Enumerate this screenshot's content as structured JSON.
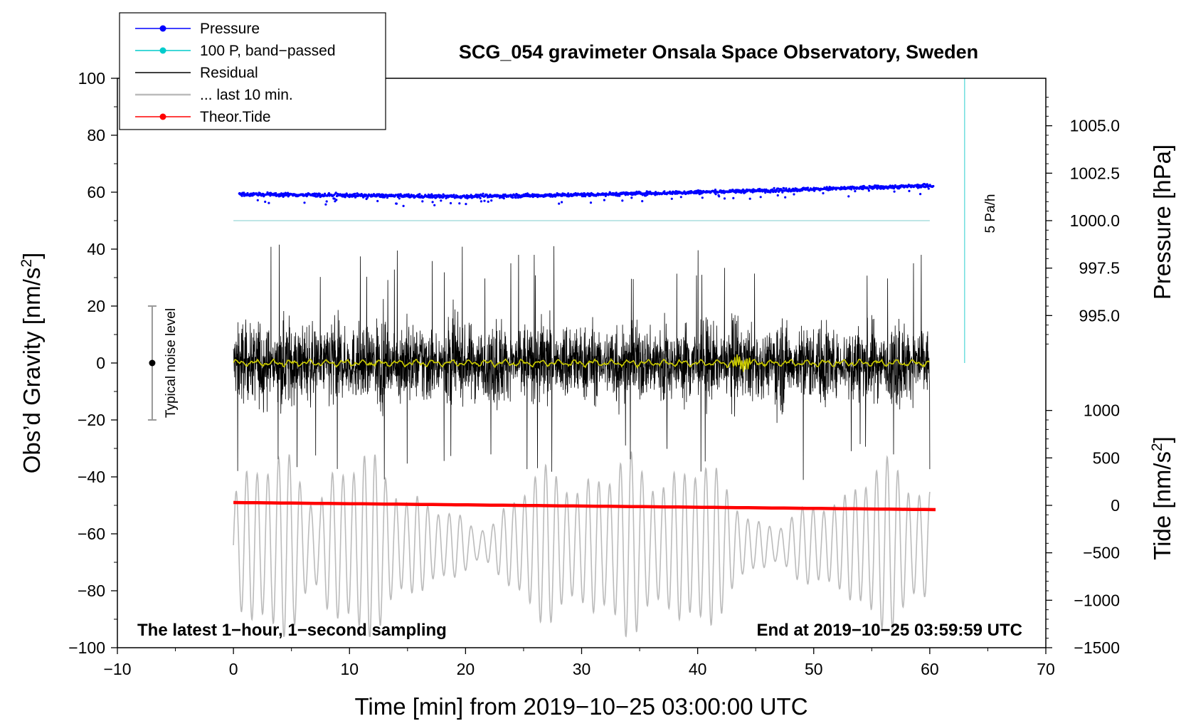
{
  "chart_data": {
    "type": "line",
    "title": "SCG_054 gravimeter Onsala Space Observatory, Sweden",
    "xlabel": "Time [min] from 2019−10−25 03:00:00 UTC",
    "ylabel_main": "Obs’d Gravity [nm/s",
    "ylabel_main_sup": "2",
    "ylabel_main_close": "]",
    "ylabel_pressure": "Pressure [hPa]",
    "ylabel_tide": "Tide [nm/s",
    "ylabel_tide_sup": "2",
    "ylabel_tide_close": "]",
    "xlim": [
      -10,
      70
    ],
    "ylim": [
      -100,
      100
    ],
    "x_ticks": [
      -10,
      0,
      10,
      20,
      30,
      40,
      50,
      60,
      70
    ],
    "x_tick_labels": [
      "−10",
      "0",
      "10",
      "20",
      "30",
      "40",
      "50",
      "60",
      "70"
    ],
    "y_ticks": [
      -100,
      -80,
      -60,
      -40,
      -20,
      0,
      20,
      40,
      60,
      80,
      100
    ],
    "y_tick_labels": [
      "−100",
      "−80",
      "−60",
      "−40",
      "−20",
      "0",
      "20",
      "40",
      "60",
      "80",
      "100"
    ],
    "pressure_axis": {
      "ticks": [
        995.0,
        997.5,
        1000.0,
        1002.5,
        1005.0
      ],
      "labels": [
        "995.0",
        "997.5",
        "1000.0",
        "1002.5",
        "1005.0"
      ],
      "gravity_at_1000": 50,
      "gravity_per_hpa": 6.667
    },
    "tide_axis": {
      "ticks": [
        -1500,
        -1000,
        -500,
        0,
        500,
        1000
      ],
      "labels": [
        "−1500",
        "−1000",
        "−500",
        "0",
        "500",
        "1000"
      ],
      "gravity_at_zero": -50,
      "gravity_per_unit": 0.03333
    },
    "legend": [
      {
        "label": "Pressure",
        "color": "#0000ff",
        "marker": true
      },
      {
        "label": "100 P, band−passed",
        "color": "#00cccc",
        "marker": true
      },
      {
        "label": "Residual",
        "color": "#000000",
        "marker": false
      },
      {
        "label": "... last 10 min.",
        "color": "#bbbbbb",
        "marker": false
      },
      {
        "label": "Theor.Tide",
        "color": "#ff0000",
        "marker": true
      }
    ],
    "series": [
      {
        "name": "Pressure",
        "color": "#0000ff",
        "x_range": [
          0.5,
          60.3
        ],
        "y_start": 59.3,
        "y_mid": 58.5,
        "y_end": 62.3,
        "scatter": 1.0
      },
      {
        "name": "100 P, band−passed",
        "color": "#aadddd",
        "x_range": [
          0,
          60
        ],
        "y": 50
      },
      {
        "name": "Residual",
        "color": "#000000",
        "x_range": [
          0,
          60
        ],
        "y_center": 0,
        "typical_amplitude": 17,
        "max_peak": 44,
        "min_trough": -47
      },
      {
        "name": "Residual smoothed",
        "color": "#cccc00",
        "x_range": [
          0,
          60
        ],
        "y": 0
      },
      {
        "name": "... last 10 min.",
        "color": "#bbbbbb",
        "x_range": [
          0,
          60
        ],
        "y_center": -64,
        "amplitude": 28
      },
      {
        "name": "Theor.Tide",
        "color": "#ff0000",
        "x_range": [
          0,
          60.5
        ],
        "y_start": -49,
        "y_end": -51.5
      }
    ],
    "noise_bar": {
      "x": -7,
      "y_low": -20,
      "y_high": 20,
      "label": "Typical noise level"
    },
    "rate_line": {
      "x": 63,
      "y_low": 0,
      "y_high": 100,
      "label": "5 Pa/h"
    },
    "notes": {
      "bottom_left": "The latest 1−hour, 1−second sampling",
      "bottom_right": "End at 2019−10−25 03:59:59 UTC"
    }
  }
}
